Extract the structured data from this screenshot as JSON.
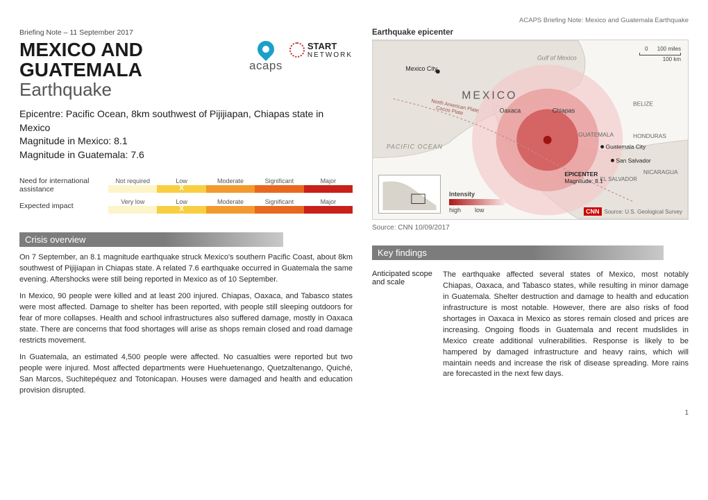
{
  "header_note": "ACAPS Briefing Note: Mexico and Guatemala Earthquake",
  "briefing_date": "Briefing Note – 11 September 2017",
  "title_line1": "MEXICO AND",
  "title_line2": "GUATEMALA",
  "title_sub": "Earthquake",
  "logo_acaps": "acaps",
  "logo_start1": "START",
  "logo_start2": "NETWORK",
  "epicentre_line1": "Epicentre: Pacific Ocean, 8km southwest of Pijijiapan, Chiapas state in Mexico",
  "epicentre_line2": "Magnitude in Mexico: 8.1",
  "epicentre_line3": "Magnitude in Guatemala: 7.6",
  "assist_label": "Need for international assistance",
  "impact_label": "Expected impact",
  "scale1": {
    "cells": [
      "Not required",
      "Low",
      "Moderate",
      "Significant",
      "Major"
    ],
    "colors": [
      "#fdf4c9",
      "#f8cf43",
      "#f29a2e",
      "#e8681f",
      "#c9201a"
    ],
    "selected_index": 1
  },
  "scale2": {
    "cells": [
      "Very low",
      "Low",
      "Moderate",
      "Significant",
      "Major"
    ],
    "colors": [
      "#fdf4c9",
      "#f8cf43",
      "#f29a2e",
      "#e8681f",
      "#c9201a"
    ],
    "selected_index": 1
  },
  "mark": "X",
  "crisis_head": "Crisis overview",
  "crisis_p1": "On 7 September, an 8.1 magnitude earthquake struck Mexico's southern Pacific Coast, about 8km southwest of Pijijiapan in Chiapas state. A related 7.6 earthquake occurred in Guatemala the same evening. Aftershocks were still being reported in Mexico as of 10 September.",
  "crisis_p2": "In Mexico, 90 people were killed and at least 200 injured. Chiapas, Oaxaca, and Tabasco states were most affected. Damage to shelter has been reported, with people still sleeping outdoors for fear of more collapses. Health and school infrastructures also suffered damage, mostly in Oaxaca state. There are concerns that food shortages will arise as shops remain closed and road damage restricts movement.",
  "crisis_p3": "In Guatemala, an estimated 4,500 people were affected. No casualties were reported but two people were injured. Most affected departments were Huehuetenango, Quetzaltenango, Quiché, San Marcos, Suchitepéquez and Totonicapan. Houses were damaged and health and education provision disrupted.",
  "epicenter_title": "Earthquake epicenter",
  "map": {
    "labels": {
      "mexico_city": "Mexico City",
      "mexico": "MEXICO",
      "gulf": "Gulf of Mexico",
      "pacific": "PACIFIC OCEAN",
      "oaxaca": "Oaxaca",
      "chiapas": "Chiapas",
      "belize": "BELIZE",
      "guatemala": "GUATEMALA",
      "honduras": "HONDURAS",
      "guatemala_city": "Guatemala City",
      "san_salvador": "San Salvador",
      "nicaragua": "NICARAGUA",
      "el_salvador": "EL SALVADOR",
      "plate1": "North American Plate",
      "plate2": "Cocos Plate",
      "epicenter1": "EPICENTER",
      "epicenter2": "Magnitude: 8.1",
      "miles": "100 miles",
      "km": "100 km",
      "zero": "0"
    },
    "legend_title": "Intensity",
    "legend_high": "high",
    "legend_low": "low",
    "cnn_src": "Source: U.S. Geological Survey",
    "cnn": "CNN",
    "colors": {
      "land": "#e7e3dc",
      "water": "#f7f6f3",
      "ring1": "#f3c9c9",
      "ring2": "#e89a9a",
      "ring3": "#d15858",
      "core": "#9e1212",
      "border": "#cfcac0",
      "boundary": "#c58a8a"
    }
  },
  "map_source": "Source: CNN 10/09/2017",
  "kf_head": "Key findings",
  "kf_label": "Anticipated scope and scale",
  "kf_text": "The earthquake affected several states of Mexico, most notably Chiapas, Oaxaca, and Tabasco states, while resulting in minor damage in Guatemala. Shelter destruction and damage to health and education infrastructure is most notable. However, there are also risks of food shortages in Oaxaca in Mexico as stores remain closed and prices are increasing. Ongoing floods in Guatemala and recent mudslides in Mexico create additional vulnerabilities. Response is likely to be hampered by damaged infrastructure and heavy rains, which will maintain needs and increase the risk of disease spreading. More rains are forecasted in the next few days.",
  "page_num": "1"
}
